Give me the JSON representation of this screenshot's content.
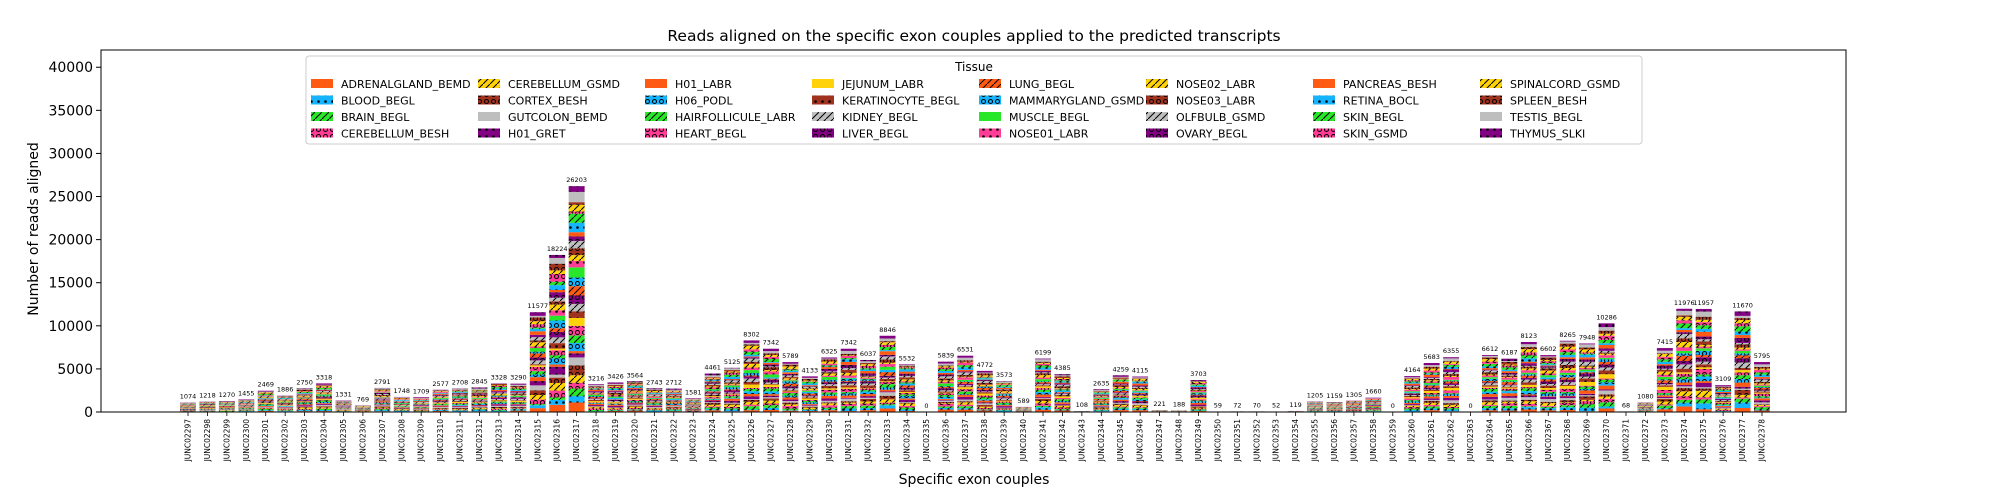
{
  "chart_data": {
    "type": "bar",
    "stacked": true,
    "title": "Reads aligned on the specific exon couples applied to the predicted transcripts",
    "xlabel": "Specific exon couples",
    "ylabel": "Number of reads aligned",
    "ylim": [
      0,
      42000
    ],
    "yticks": [
      0,
      5000,
      10000,
      15000,
      20000,
      25000,
      30000,
      35000,
      40000
    ],
    "legend": {
      "title": "Tissue",
      "placement": "top-center",
      "columns": 8
    },
    "series": [
      {
        "name": "ADRENALGLAND_BEMD",
        "color": "#ff5a14",
        "hatch": "none"
      },
      {
        "name": "BLOOD_BEGL",
        "color": "#14b4ff",
        "hatch": "dot"
      },
      {
        "name": "BRAIN_BEGL",
        "color": "#28e628",
        "hatch": "slash"
      },
      {
        "name": "CEREBELLUM_BESH",
        "color": "#ff3c96",
        "hatch": "ring"
      },
      {
        "name": "CEREBELLUM_GSMD",
        "color": "#ffd20a",
        "hatch": "slash"
      },
      {
        "name": "CORTEX_BESH",
        "color": "#a0321e",
        "hatch": "ring"
      },
      {
        "name": "GUTCOLON_BEMD",
        "color": "#bebebe",
        "hatch": "none"
      },
      {
        "name": "H01_GRET",
        "color": "#820082",
        "hatch": "dot"
      },
      {
        "name": "H01_LABR",
        "color": "#ff5a14",
        "hatch": "none"
      },
      {
        "name": "H06_PODL",
        "color": "#14b4ff",
        "hatch": "ring"
      },
      {
        "name": "HAIRFOLLICULE_LABR",
        "color": "#28e628",
        "hatch": "slash"
      },
      {
        "name": "HEART_BEGL",
        "color": "#ff3c96",
        "hatch": "ring"
      },
      {
        "name": "JEJUNUM_LABR",
        "color": "#ffd20a",
        "hatch": "none"
      },
      {
        "name": "KERATINOCYTE_BEGL",
        "color": "#a0321e",
        "hatch": "dot"
      },
      {
        "name": "KIDNEY_BEGL",
        "color": "#bebebe",
        "hatch": "slash"
      },
      {
        "name": "LIVER_BEGL",
        "color": "#820082",
        "hatch": "ring"
      },
      {
        "name": "LUNG_BEGL",
        "color": "#ff5a14",
        "hatch": "slash"
      },
      {
        "name": "MAMMARYGLAND_GSMD",
        "color": "#14b4ff",
        "hatch": "ring"
      },
      {
        "name": "MUSCLE_BEGL",
        "color": "#28e628",
        "hatch": "none"
      },
      {
        "name": "NOSE01_LABR",
        "color": "#ff3c96",
        "hatch": "dot"
      },
      {
        "name": "NOSE02_LABR",
        "color": "#ffd20a",
        "hatch": "slash"
      },
      {
        "name": "NOSE03_LABR",
        "color": "#a0321e",
        "hatch": "ring"
      },
      {
        "name": "OLFBULB_GSMD",
        "color": "#bebebe",
        "hatch": "slash"
      },
      {
        "name": "OVARY_BEGL",
        "color": "#820082",
        "hatch": "ring"
      },
      {
        "name": "PANCREAS_BESH",
        "color": "#ff5a14",
        "hatch": "none"
      },
      {
        "name": "RETINA_BOCL",
        "color": "#14b4ff",
        "hatch": "dot"
      },
      {
        "name": "SKIN_BEGL",
        "color": "#28e628",
        "hatch": "slash"
      },
      {
        "name": "SKIN_GSMD",
        "color": "#ff3c96",
        "hatch": "ring"
      },
      {
        "name": "SPINALCORD_GSMD",
        "color": "#ffd20a",
        "hatch": "slash"
      },
      {
        "name": "SPLEEN_BESH",
        "color": "#a0321e",
        "hatch": "ring"
      },
      {
        "name": "TESTIS_BEGL",
        "color": "#bebebe",
        "hatch": "none"
      },
      {
        "name": "THYMUS_SLKI",
        "color": "#820082",
        "hatch": "dot"
      }
    ],
    "categories": [
      "JUNC02297",
      "JUNC02298",
      "JUNC02299",
      "JUNC02300",
      "JUNC02301",
      "JUNC02302",
      "JUNC02303",
      "JUNC02304",
      "JUNC02305",
      "JUNC02306",
      "JUNC02307",
      "JUNC02308",
      "JUNC02309",
      "JUNC02310",
      "JUNC02311",
      "JUNC02312",
      "JUNC02313",
      "JUNC02314",
      "JUNC02315",
      "JUNC02316",
      "JUNC02317",
      "JUNC02318",
      "JUNC02319",
      "JUNC02320",
      "JUNC02321",
      "JUNC02322",
      "JUNC02323",
      "JUNC02324",
      "JUNC02325",
      "JUNC02326",
      "JUNC02327",
      "JUNC02328",
      "JUNC02329",
      "JUNC02330",
      "JUNC02331",
      "JUNC02332",
      "JUNC02333",
      "JUNC02334",
      "JUNC02335",
      "JUNC02336",
      "JUNC02337",
      "JUNC02338",
      "JUNC02339",
      "JUNC02340",
      "JUNC02341",
      "JUNC02342",
      "JUNC02343",
      "JUNC02344",
      "JUNC02345",
      "JUNC02346",
      "JUNC02347",
      "JUNC02348",
      "JUNC02349",
      "JUNC02350",
      "JUNC02351",
      "JUNC02352",
      "JUNC02353",
      "JUNC02354",
      "JUNC02355",
      "JUNC02356",
      "JUNC02357",
      "JUNC02358",
      "JUNC02359",
      "JUNC02360",
      "JUNC02361",
      "JUNC02362",
      "JUNC02363",
      "JUNC02364",
      "JUNC02365",
      "JUNC02366",
      "JUNC02367",
      "JUNC02368",
      "JUNC02369",
      "JUNC02370",
      "JUNC02371",
      "JUNC02372",
      "JUNC02373",
      "JUNC02374",
      "JUNC02375",
      "JUNC02376",
      "JUNC02377",
      "JUNC02378"
    ],
    "totals": [
      1074,
      1218,
      1270,
      1455,
      2469,
      1886,
      2750,
      3318,
      1331,
      769,
      2791,
      1748,
      1709,
      2577,
      2708,
      2845,
      3328,
      3290,
      11577,
      18224,
      26203,
      3216,
      3426,
      3564,
      2743,
      2712,
      1581,
      4461,
      5125,
      8302,
      7342,
      5789,
      4133,
      6325,
      7342,
      6037,
      8846,
      5532,
      0,
      5839,
      6531,
      4772,
      3573,
      589,
      6199,
      4385,
      108,
      2635,
      4259,
      4115,
      221,
      188,
      3703,
      59,
      72,
      70,
      52,
      119,
      1205,
      1159,
      1305,
      1660,
      0,
      4164,
      5683,
      6355,
      0,
      6612,
      6187,
      8123,
      6602,
      8265,
      7948,
      10286,
      68,
      1080,
      7415,
      11976,
      11957,
      3109,
      11670,
      5795
    ],
    "total_labels": [
      "1074",
      "1218",
      "1270",
      "1455",
      "2469",
      "1886",
      "2750",
      "3318",
      "1331",
      "769",
      "2791",
      "1748",
      "1709",
      "2577",
      "2708",
      "2845",
      "3328",
      "3290",
      "11577",
      "18224",
      "26203",
      "3216",
      "3426",
      "3564",
      "2743",
      "2712",
      "1581",
      "4461",
      "5125",
      "8302",
      "7342",
      "5789",
      "4133",
      "6325",
      "7342",
      "6037",
      "8846",
      "5532",
      "0",
      "5839",
      "6531",
      "4772",
      "3573",
      "589",
      "6199",
      "4385",
      "108",
      "2635",
      "4259",
      "4115",
      "221",
      "188",
      "3703",
      "59",
      "72",
      "70",
      "52",
      "119",
      "1205",
      "1159",
      "1305",
      "1660",
      "0",
      "4164",
      "5683",
      "6355",
      "0",
      "6612",
      "6187",
      "8123",
      "6602",
      "8265",
      "7948",
      "10286",
      "68",
      "1080",
      "7415",
      "11976",
      "11957",
      "3109",
      "11670",
      "5795"
    ],
    "grid": false
  }
}
